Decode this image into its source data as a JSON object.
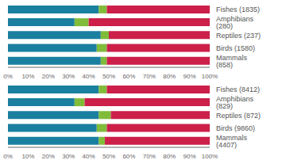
{
  "chart_data": [
    {
      "type": "bar",
      "orientation": "horizontal",
      "stacked": true,
      "grid": false,
      "categories": [
        "Fishes (1835)",
        "Amphibians (280)",
        "Reptiles (237)",
        "Birds (1580)",
        "Mammals (858)"
      ],
      "series": [
        {
          "color": "#1b7fa0",
          "values": [
            45,
            33,
            46,
            44,
            46
          ]
        },
        {
          "color": "#80bc3a",
          "values": [
            4,
            7,
            4,
            5,
            3
          ]
        },
        {
          "color": "#cc1f4a",
          "values": [
            51,
            60,
            50,
            51,
            51
          ]
        }
      ],
      "xlim": [
        0,
        100
      ],
      "xticks": [
        {
          "value": 0,
          "label": "0%"
        },
        {
          "value": 10,
          "label": "10%"
        },
        {
          "value": 20,
          "label": "20%"
        },
        {
          "value": 30,
          "label": "30%"
        },
        {
          "value": 40,
          "label": "40%"
        },
        {
          "value": 50,
          "label": "50%"
        },
        {
          "value": 60,
          "label": "60%"
        },
        {
          "value": 70,
          "label": "70%"
        },
        {
          "value": 80,
          "label": "80%"
        },
        {
          "value": 90,
          "label": "90%"
        },
        {
          "value": 100,
          "label": "100%"
        }
      ]
    },
    {
      "type": "bar",
      "orientation": "horizontal",
      "stacked": true,
      "grid": false,
      "categories": [
        "Fishes (8412)",
        "Amphibians (829)",
        "Reptiles (872)",
        "Birds (9860)",
        "Mammals (4407)"
      ],
      "series": [
        {
          "color": "#1b7fa0",
          "values": [
            45,
            33,
            45,
            44,
            45
          ]
        },
        {
          "color": "#80bc3a",
          "values": [
            4,
            5,
            6,
            5,
            3
          ]
        },
        {
          "color": "#cc1f4a",
          "values": [
            51,
            62,
            49,
            51,
            52
          ]
        }
      ],
      "xlim": [
        0,
        100
      ],
      "xticks": [
        {
          "value": 0,
          "label": "0%"
        },
        {
          "value": 10,
          "label": "10%"
        },
        {
          "value": 20,
          "label": "20%"
        },
        {
          "value": 30,
          "label": "30%"
        },
        {
          "value": 40,
          "label": "40%"
        },
        {
          "value": 50,
          "label": "50%"
        },
        {
          "value": 60,
          "label": "60%"
        },
        {
          "value": 70,
          "label": "70%"
        },
        {
          "value": 80,
          "label": "80%"
        },
        {
          "value": 90,
          "label": "90%"
        },
        {
          "value": 100,
          "label": "100%"
        }
      ]
    }
  ]
}
